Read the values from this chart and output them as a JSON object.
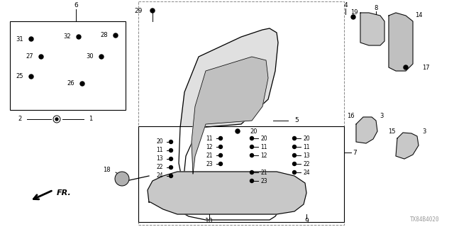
{
  "bg_color": "#ffffff",
  "watermark": "TX84B4020",
  "fig_width": 6.4,
  "fig_height": 3.2
}
